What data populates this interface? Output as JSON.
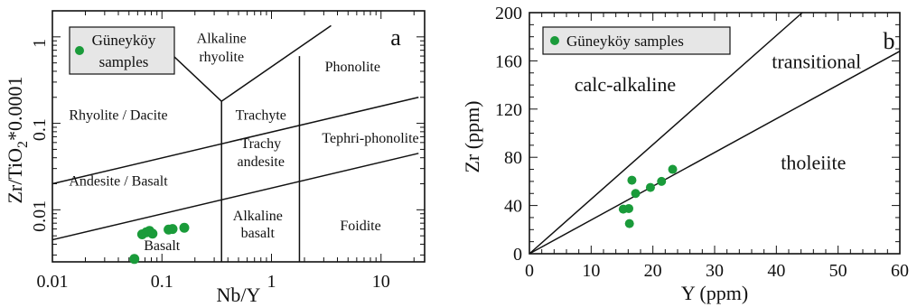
{
  "chart_data": [
    {
      "panel_label": "a",
      "type": "scatter",
      "x_scale": "log",
      "y_scale": "log",
      "xlabel": "Nb/Y",
      "ylabel_parts": {
        "pre": "Zr/TiO",
        "sub": "2",
        "post": "*0.0001"
      },
      "xlim": [
        0.01,
        25
      ],
      "ylim": [
        0.0025,
        2
      ],
      "x_ticks": [
        {
          "v": 0.01,
          "label": "0.01"
        },
        {
          "v": 0.1,
          "label": "0.1"
        },
        {
          "v": 1,
          "label": "1"
        },
        {
          "v": 10,
          "label": "10"
        }
      ],
      "y_ticks": [
        {
          "v": 0.01,
          "label": "0.01"
        },
        {
          "v": 0.1,
          "label": "0.1"
        },
        {
          "v": 1,
          "label": "1"
        }
      ],
      "legend": {
        "label_line1": "Güneyköy",
        "label_line2": "samples",
        "placement": "top-left"
      },
      "marker_color": "#1a9b3a",
      "series": [
        {
          "points": [
            [
              0.066,
              0.0052
            ],
            [
              0.072,
              0.0055
            ],
            [
              0.077,
              0.0057
            ],
            [
              0.082,
              0.0053
            ],
            [
              0.115,
              0.0059
            ],
            [
              0.125,
              0.006
            ],
            [
              0.16,
              0.0062
            ],
            [
              0.056,
              0.0027
            ]
          ]
        }
      ],
      "boundaries": [
        [
          [
            0.01,
            0.02
          ],
          [
            22,
            0.2
          ]
        ],
        [
          [
            0.01,
            0.0045
          ],
          [
            22,
            0.045
          ]
        ],
        [
          [
            0.35,
            0.0025
          ],
          [
            0.35,
            0.18
          ]
        ],
        [
          [
            1.8,
            0.0025
          ],
          [
            1.8,
            0.6
          ]
        ],
        [
          [
            0.35,
            0.18
          ],
          [
            0.1,
            0.8
          ]
        ],
        [
          [
            0.35,
            0.18
          ],
          [
            3.5,
            1.35
          ]
        ]
      ],
      "fields": [
        {
          "text": "Alkaline",
          "x": 0.35,
          "y": 0.85
        },
        {
          "text": "rhyolite",
          "x": 0.35,
          "y": 0.52
        },
        {
          "text": "Phonolite",
          "x": 5.5,
          "y": 0.4
        },
        {
          "text": "Rhyolite / Dacite",
          "x": 0.04,
          "y": 0.11
        },
        {
          "text": "Trachyte",
          "x": 0.8,
          "y": 0.11
        },
        {
          "text": "Trachy",
          "x": 0.8,
          "y": 0.052
        },
        {
          "text": "andesite",
          "x": 0.8,
          "y": 0.032
        },
        {
          "text": "Tephri-phonolite",
          "x": 8,
          "y": 0.06
        },
        {
          "text": "Andesite / Basalt",
          "x": 0.04,
          "y": 0.019
        },
        {
          "text": "Alkaline",
          "x": 0.75,
          "y": 0.0076
        },
        {
          "text": "basalt",
          "x": 0.75,
          "y": 0.0048
        },
        {
          "text": "Foidite",
          "x": 6.5,
          "y": 0.0058
        },
        {
          "text": "Basalt",
          "x": 0.1,
          "y": 0.0034
        }
      ]
    },
    {
      "panel_label": "b",
      "type": "scatter",
      "xlabel": "Y (ppm)",
      "ylabel": "Zr (ppm)",
      "xlim": [
        0,
        60
      ],
      "ylim": [
        0,
        200
      ],
      "x_ticks": [
        0,
        10,
        20,
        30,
        40,
        50,
        60
      ],
      "y_ticks": [
        0,
        40,
        80,
        120,
        160,
        200
      ],
      "legend": {
        "label": "Güneyköy samples",
        "placement": "top-left"
      },
      "marker_color": "#1a9b3a",
      "series": [
        {
          "points": [
            [
              15.2,
              37
            ],
            [
              16.1,
              37.5
            ],
            [
              16.2,
              25
            ],
            [
              16.6,
              61
            ],
            [
              17.2,
              50
            ],
            [
              19.6,
              55
            ],
            [
              21.4,
              60
            ],
            [
              23.2,
              70
            ]
          ]
        }
      ],
      "boundaries": [
        [
          [
            0,
            0
          ],
          [
            44.2,
            200
          ]
        ],
        [
          [
            0,
            0
          ],
          [
            60,
            168
          ]
        ]
      ],
      "fields": [
        {
          "text": "calc-alkaline",
          "x": 15.5,
          "y": 135
        },
        {
          "text": "transitional",
          "x": 46.5,
          "y": 154
        },
        {
          "text": "tholeiite",
          "x": 46,
          "y": 70
        }
      ]
    }
  ]
}
